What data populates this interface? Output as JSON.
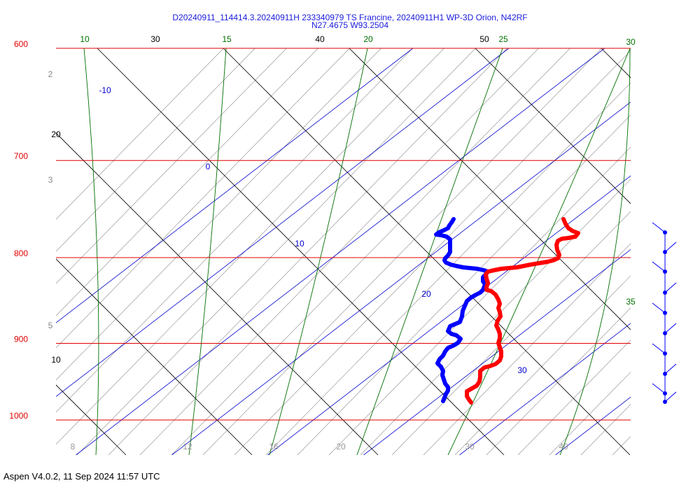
{
  "header": {
    "title_line1": "D20240911_114414.3.20240911H 233340979 TS Francine, 20240911H1 WP-3D Orion, N42RF",
    "title_line2": "N27.4675 W93.2504"
  },
  "footer": {
    "text": "Aspen V4.0.2, 11 Sep 2024  11:57 UTC"
  },
  "chart_data": {
    "type": "line",
    "axis": {
      "pressure_levels_hPa": [
        600,
        700,
        800,
        900,
        1000
      ],
      "pressure_labels": [
        "600",
        "700",
        "800",
        "900",
        "1000"
      ],
      "pressure_range_hPa": [
        600,
        1035
      ],
      "pressure_scale": "log",
      "temperature_labels_bottom": [
        "8",
        "12",
        "16",
        "20",
        "30",
        "40"
      ],
      "temperature_range_C": [
        -8,
        40
      ]
    },
    "colors": {
      "isobar": "#e00000",
      "isotherm": "#0000cc",
      "mixing_ratio": "#8a8a8a",
      "dry_adiabat": "#000000",
      "moist_adiabat": "#007000",
      "temperature": "#ff0000",
      "dewpoint": "#0000ff"
    },
    "isotherms": [
      {
        "value": -10,
        "label": "-10"
      },
      {
        "value": 0,
        "label": "0"
      },
      {
        "value": 10,
        "label": "10"
      },
      {
        "value": 20,
        "label": "20"
      },
      {
        "value": 30,
        "label": "30"
      }
    ],
    "dry_adiabat_labels": [
      "10",
      "20",
      "30",
      "40",
      "50"
    ],
    "moist_adiabat_labels": [
      "10",
      "15",
      "20",
      "25",
      "30",
      "35"
    ],
    "mixing_ratio_labels": [
      "2",
      "3",
      "5"
    ],
    "series": [
      {
        "points": [
          [
            621,
            772
          ],
          [
            624,
            775
          ],
          [
            626,
            779
          ],
          [
            624,
            782
          ],
          [
            619,
            786
          ],
          [
            615,
            788
          ],
          [
            614,
            791
          ],
          [
            617,
            794
          ],
          [
            620,
            797
          ],
          [
            621,
            800
          ],
          [
            618,
            803
          ],
          [
            620,
            806
          ],
          [
            626,
            807
          ],
          [
            632,
            807
          ],
          [
            638,
            806
          ],
          [
            644,
            807
          ],
          [
            650,
            807
          ],
          [
            656,
            807
          ],
          [
            661,
            807
          ],
          [
            664,
            808
          ],
          [
            667,
            809
          ],
          [
            669,
            810
          ],
          [
            671,
            812
          ],
          [
            671,
            814
          ],
          [
            671,
            816
          ],
          [
            670,
            818
          ],
          [
            671,
            820
          ],
          [
            671,
            822
          ],
          [
            671,
            825
          ],
          [
            670,
            828
          ],
          [
            671,
            831
          ],
          [
            673,
            834
          ],
          [
            674,
            838
          ],
          [
            674,
            842
          ],
          [
            672,
            846
          ],
          [
            671,
            849
          ],
          [
            672,
            853
          ],
          [
            673,
            857
          ],
          [
            671,
            861
          ],
          [
            672,
            864
          ],
          [
            673,
            868
          ],
          [
            671,
            872
          ],
          [
            670,
            876
          ],
          [
            671,
            881
          ],
          [
            671,
            885
          ],
          [
            670,
            889
          ],
          [
            669,
            893
          ],
          [
            669,
            897
          ],
          [
            670,
            901
          ],
          [
            670,
            906
          ],
          [
            669,
            910
          ],
          [
            668,
            914
          ],
          [
            665,
            917
          ],
          [
            662,
            918
          ],
          [
            660,
            920
          ],
          [
            657,
            923
          ],
          [
            657,
            927
          ],
          [
            656,
            931
          ],
          [
            656,
            935
          ],
          [
            655,
            939
          ],
          [
            655,
            943
          ],
          [
            656,
            947
          ],
          [
            657,
            951
          ],
          [
            655,
            955
          ],
          [
            655,
            959
          ],
          [
            658,
            963
          ],
          [
            659,
            967
          ],
          [
            660,
            971
          ],
          [
            661,
            974
          ]
        ]
      },
      {
        "points": [
          [
            623,
            770
          ],
          [
            624,
            774
          ],
          [
            621,
            778
          ],
          [
            617,
            782
          ],
          [
            612,
            785
          ],
          [
            610,
            787
          ],
          [
            612,
            791
          ],
          [
            614,
            795
          ],
          [
            615,
            800
          ],
          [
            612,
            803
          ],
          [
            610,
            806
          ],
          [
            613,
            808
          ],
          [
            620,
            809
          ],
          [
            628,
            810
          ],
          [
            636,
            810
          ],
          [
            643,
            810
          ],
          [
            648,
            811
          ],
          [
            652,
            812
          ],
          [
            656,
            812
          ],
          [
            658,
            815
          ],
          [
            660,
            818
          ],
          [
            660,
            821
          ],
          [
            661,
            825
          ],
          [
            659,
            829
          ],
          [
            656,
            832
          ],
          [
            653,
            836
          ],
          [
            650,
            840
          ],
          [
            648,
            844
          ],
          [
            646,
            848
          ],
          [
            643,
            852
          ],
          [
            641,
            856
          ],
          [
            639,
            860
          ],
          [
            636,
            863
          ],
          [
            632,
            866
          ],
          [
            630,
            869
          ],
          [
            630,
            872
          ],
          [
            634,
            875
          ],
          [
            635,
            879
          ],
          [
            632,
            883
          ],
          [
            628,
            887
          ],
          [
            625,
            891
          ],
          [
            624,
            894
          ],
          [
            624,
            898
          ],
          [
            622,
            901
          ],
          [
            620,
            905
          ],
          [
            620,
            909
          ],
          [
            622,
            913
          ],
          [
            623,
            917
          ],
          [
            622,
            921
          ],
          [
            621,
            925
          ],
          [
            622,
            929
          ],
          [
            623,
            933
          ],
          [
            623,
            937
          ],
          [
            622,
            941
          ],
          [
            622,
            945
          ],
          [
            623,
            949
          ],
          [
            623,
            953
          ],
          [
            624,
            957
          ],
          [
            624,
            961
          ],
          [
            624,
            965
          ],
          [
            625,
            969
          ],
          [
            625,
            973
          ],
          [
            624,
            977
          ]
        ]
      }
    ],
    "wind_barbs": {
      "points_hPa": [
        780,
        800,
        818,
        840,
        862,
        888,
        910,
        935,
        955,
        975
      ]
    }
  }
}
